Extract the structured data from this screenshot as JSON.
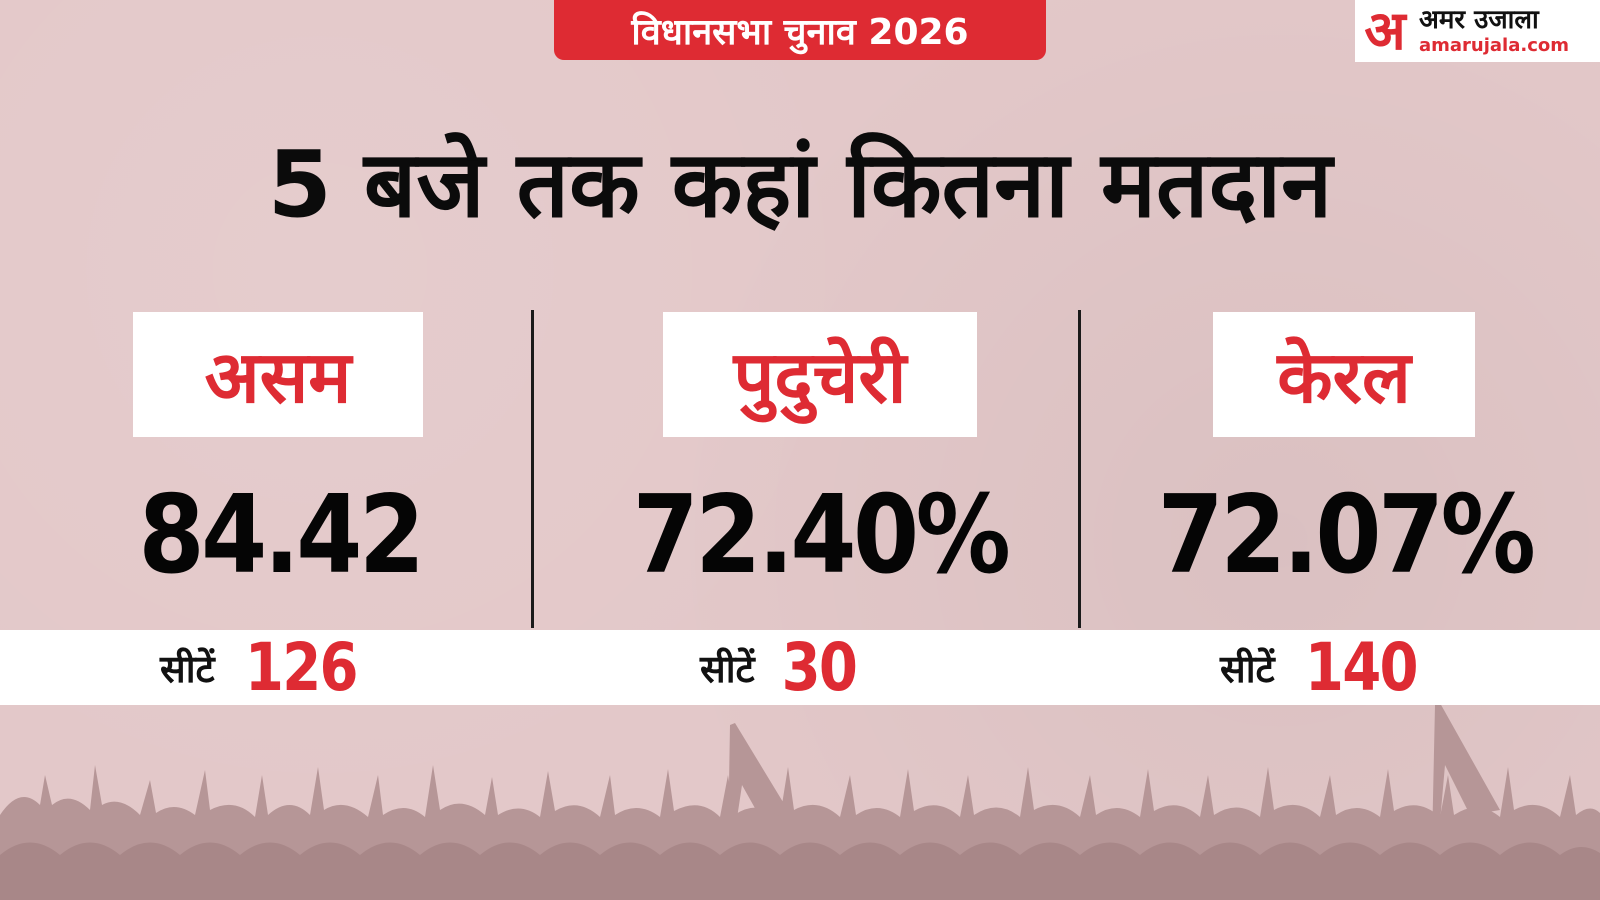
{
  "header": {
    "election_label": "विधानसभा चुनाव 2026",
    "logo_mark": "अ",
    "logo_name": "अमर उजाला",
    "logo_url": "amarujala.com"
  },
  "headline": "5 बजे तक कहां कितना मतदान",
  "states": [
    {
      "name": "असम",
      "turnout": "84.42",
      "seats_label": "सीटें",
      "seats": "126"
    },
    {
      "name": "पुदुचेरी",
      "turnout": "72.40%",
      "seats_label": "सीटें",
      "seats": "30"
    },
    {
      "name": "केरल",
      "turnout": "72.07%",
      "seats_label": "सीटें",
      "seats": "140"
    }
  ],
  "colors": {
    "accent": "#de2b33",
    "background": "#e3c8c9",
    "crowd": "#b69697"
  }
}
